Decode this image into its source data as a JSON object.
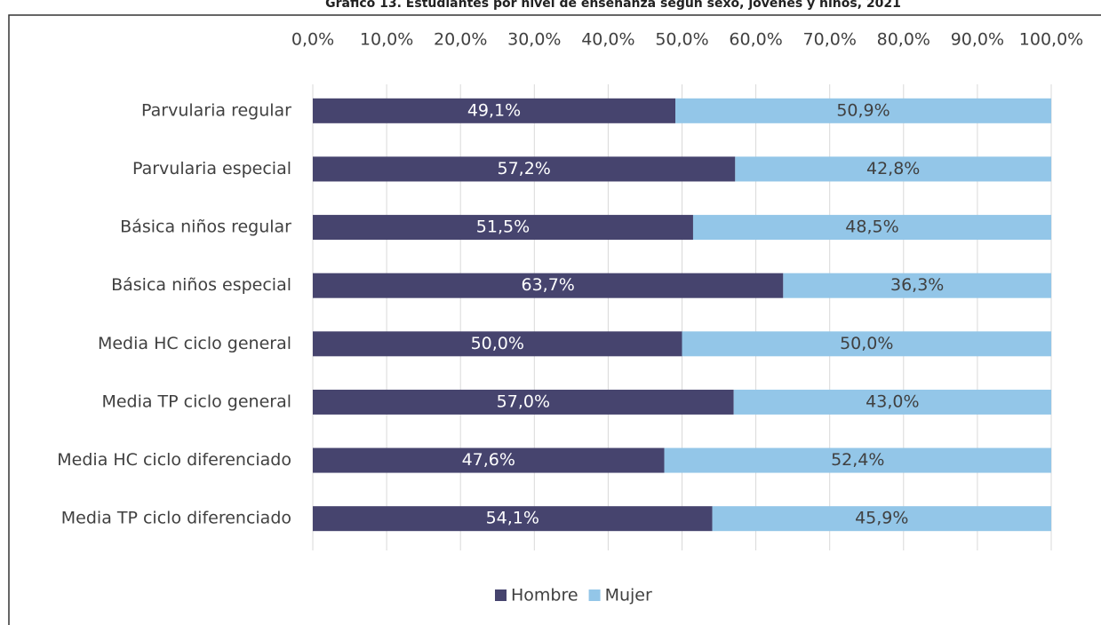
{
  "chart_data": {
    "type": "stacked_barh",
    "title": "Gráfico 13. Estudiantes por nivel de enseñanza según sexo, jóvenes y niños, 2021",
    "categories": [
      "Parvularia regular",
      "Parvularia especial",
      "Básica niños regular",
      "Básica niños especial",
      "Media HC ciclo general",
      "Media TP ciclo general",
      "Media HC ciclo diferenciado",
      "Media TP ciclo diferenciado"
    ],
    "series": [
      {
        "name": "Hombre",
        "color": "#46446e",
        "values": [
          49.1,
          57.2,
          51.5,
          63.7,
          50.0,
          57.0,
          47.6,
          54.1
        ],
        "value_labels": [
          "49,1%",
          "57,2%",
          "51,5%",
          "63,7%",
          "50,0%",
          "57,0%",
          "47,6%",
          "54,1%"
        ]
      },
      {
        "name": "Mujer",
        "color": "#93c6e8",
        "values": [
          50.9,
          42.8,
          48.5,
          36.3,
          50.0,
          43.0,
          52.4,
          45.9
        ],
        "value_labels": [
          "50,9%",
          "42,8%",
          "48,5%",
          "36,3%",
          "50,0%",
          "43,0%",
          "52,4%",
          "45,9%"
        ]
      }
    ],
    "xlim": [
      0,
      100
    ],
    "xticks": [
      {
        "value": 0,
        "label": "0,0%"
      },
      {
        "value": 10,
        "label": "10,0%"
      },
      {
        "value": 20,
        "label": "20,0%"
      },
      {
        "value": 30,
        "label": "30,0%"
      },
      {
        "value": 40,
        "label": "40,0%"
      },
      {
        "value": 50,
        "label": "50,0%"
      },
      {
        "value": 60,
        "label": "60,0%"
      },
      {
        "value": 70,
        "label": "70,0%"
      },
      {
        "value": 80,
        "label": "80,0%"
      },
      {
        "value": 90,
        "label": "90,0%"
      },
      {
        "value": 100,
        "label": "100,0%"
      }
    ],
    "grid": true,
    "legend": "bottom"
  }
}
